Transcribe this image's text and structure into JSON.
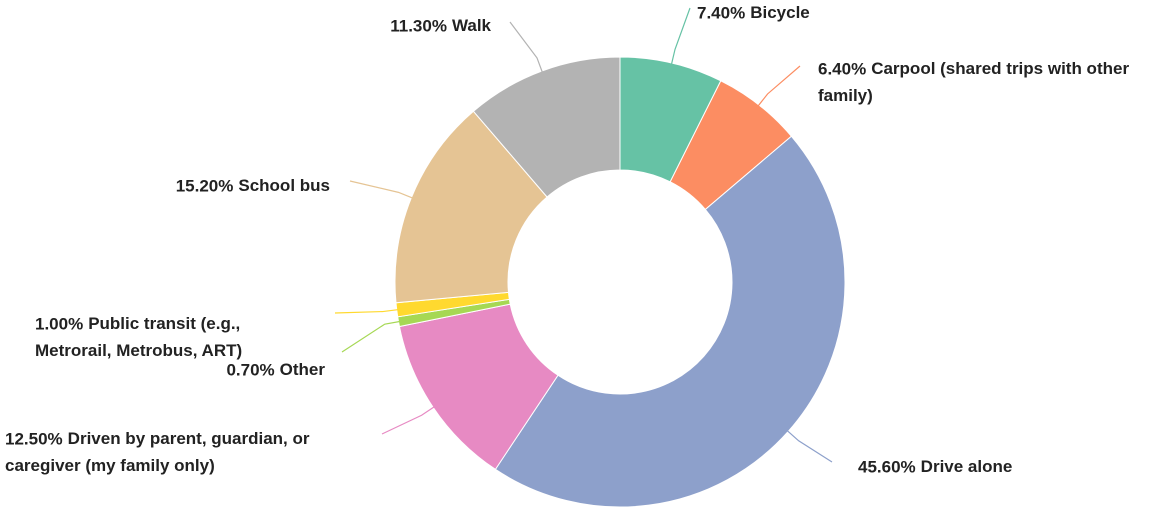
{
  "chart_data": {
    "type": "donut",
    "categories": [
      "Bicycle",
      "Carpool (shared trips with other family)",
      "Drive alone",
      "Driven by parent, guardian, or caregiver (my family only)",
      "Other",
      "Public transit (e.g., Metrorail, Metrobus, ART)",
      "School bus",
      "Walk"
    ],
    "values": [
      7.4,
      6.4,
      45.6,
      12.5,
      0.7,
      1.0,
      15.2,
      11.3
    ],
    "value_labels": [
      "7.40%",
      "6.40%",
      "45.60%",
      "12.50%",
      "0.70%",
      "1.00%",
      "15.20%",
      "11.30%"
    ],
    "colors": [
      "#66c2a5",
      "#fc8d62",
      "#8da0cb",
      "#e78ac3",
      "#a6d854",
      "#ffd92f",
      "#e5c494",
      "#b3b3b3"
    ]
  }
}
